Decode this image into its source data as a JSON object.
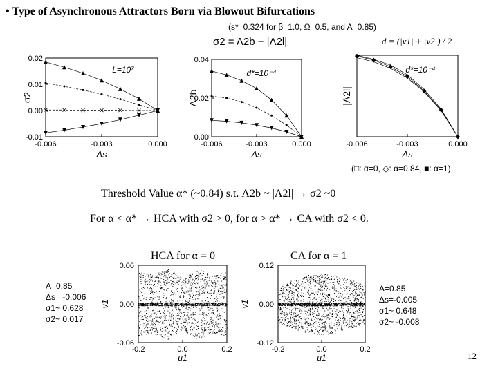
{
  "slide": {
    "bullet": "•",
    "title": "Type of Asynchronous Attractors Born via Blowout Bifurcations",
    "params": "(s*=0.324 for β=1.0, Ω=0.5, and A=0.85)",
    "eq_sigma": "σ2 = Λ2b − |Λ2l|",
    "eq_d": "d = (|v1| + |v2|) / 2",
    "legend_line": "(□: α=0, ◇: α=0.84, ■: α=1)",
    "threshold_line": "Threshold Value α* (~0.84) s.t. Λ2b ~ |Λ2l| → σ2 ~0",
    "condition_line": "For α < α* → HCA with σ2 > 0, for α > α* → CA with σ2 < 0.",
    "hca_label": "HCA for α = 0",
    "ca_label": "CA for α = 1",
    "left_params": [
      "A=0.85",
      "Δs =-0.006",
      "σ1~ 0.628",
      "σ2~ 0.017"
    ],
    "right_params": [
      "A=0.85",
      "Δs=-0.005",
      "σ1~ 0.648",
      "σ2~ -0.008"
    ],
    "page_number": "12"
  },
  "chart_data": [
    {
      "type": "line",
      "annotation": "L=10⁷",
      "xlabel": "Δs",
      "ylabel": "σ2",
      "xlim": [
        -0.006,
        0.0
      ],
      "ylim": [
        -0.01,
        0.02
      ],
      "xticks": [
        "-0.006",
        "-0.003",
        "0.000"
      ],
      "yticks": [
        "0.02",
        "0.01",
        "0.00",
        "-0.01"
      ],
      "x": [
        -0.006,
        -0.005,
        -0.004,
        -0.003,
        -0.002,
        -0.001,
        0.0
      ],
      "series": [
        {
          "marker": "triangle-up",
          "values": [
            0.0185,
            0.0165,
            0.0142,
            0.0115,
            0.0082,
            0.0045,
            0.0
          ]
        },
        {
          "marker": "dot",
          "values": [
            0.0105,
            0.0092,
            0.0078,
            0.0062,
            0.0043,
            0.0022,
            0.0
          ]
        },
        {
          "marker": "cross",
          "values": [
            0.0002,
            0.0002,
            0.0001,
            0.0001,
            0.0001,
            0.0,
            0.0
          ]
        },
        {
          "marker": "triangle-down",
          "values": [
            -0.0085,
            -0.0075,
            -0.0063,
            -0.005,
            -0.0035,
            -0.0018,
            0.0
          ]
        }
      ]
    },
    {
      "type": "line",
      "annotation": "d*=10⁻⁴",
      "xlabel": "Δs",
      "ylabel": "Λ2b",
      "xlim": [
        -0.006,
        0.0
      ],
      "ylim": [
        0.0,
        0.04
      ],
      "xticks": [
        "-0.006",
        "-0.003",
        "0.000"
      ],
      "yticks": [
        "0.04",
        "0.02",
        "0.00"
      ],
      "x": [
        -0.006,
        -0.005,
        -0.004,
        -0.003,
        -0.002,
        -0.001,
        0.0
      ],
      "series": [
        {
          "marker": "triangle-up",
          "values": [
            0.034,
            0.032,
            0.029,
            0.025,
            0.019,
            0.011,
            0.0
          ]
        },
        {
          "marker": "dot",
          "values": [
            0.021,
            0.02,
            0.018,
            0.015,
            0.011,
            0.006,
            0.0
          ]
        },
        {
          "marker": "triangle-down",
          "values": [
            0.0085,
            0.008,
            0.0072,
            0.006,
            0.0045,
            0.0025,
            0.0
          ]
        }
      ]
    },
    {
      "type": "line",
      "annotation": "d*=10⁻⁴",
      "xlabel": "Δs",
      "ylabel": "|Λ2l|",
      "xlim": [
        -0.006,
        0.0
      ],
      "ylim": [
        0.0,
        1.0
      ],
      "xticks": [
        "-0.006",
        "-0.003",
        "0.000"
      ],
      "yticks": [],
      "x": [
        -0.006,
        -0.005,
        -0.004,
        -0.003,
        -0.002,
        -0.001,
        0.0
      ],
      "series": [
        {
          "marker": "diamond",
          "values": [
            0.99,
            0.94,
            0.86,
            0.74,
            0.56,
            0.33,
            0.0
          ]
        },
        {
          "marker": "none",
          "values": [
            0.97,
            0.92,
            0.84,
            0.72,
            0.55,
            0.32,
            0.0
          ]
        },
        {
          "marker": "none",
          "values": [
            1.0,
            0.95,
            0.88,
            0.76,
            0.58,
            0.34,
            0.0
          ]
        }
      ]
    },
    {
      "type": "scatter",
      "title": "HCA for α = 0",
      "xlabel": "u1",
      "ylabel": "v1",
      "xlim": [
        -0.2,
        0.2
      ],
      "ylim": [
        -0.06,
        0.06
      ],
      "xticks": [
        "-0.2",
        "0.0",
        "0.2"
      ],
      "yticks": [
        "0.06",
        "0.00",
        "-0.06"
      ],
      "envelope": [
        0.05,
        0.045,
        0.055,
        0.04,
        0.055,
        0.045,
        0.05
      ]
    },
    {
      "type": "scatter",
      "title": "CA for α = 1",
      "xlabel": "u1",
      "ylabel": "v1",
      "xlim": [
        -0.2,
        0.2
      ],
      "ylim": [
        -0.12,
        0.12
      ],
      "xticks": [
        "-0.2",
        "0.0",
        "0.2"
      ],
      "yticks": [
        "0.12",
        "0.00",
        "-0.12"
      ],
      "envelope": [
        0.06,
        0.075,
        0.09,
        0.095,
        0.09,
        0.075,
        0.06
      ]
    }
  ]
}
